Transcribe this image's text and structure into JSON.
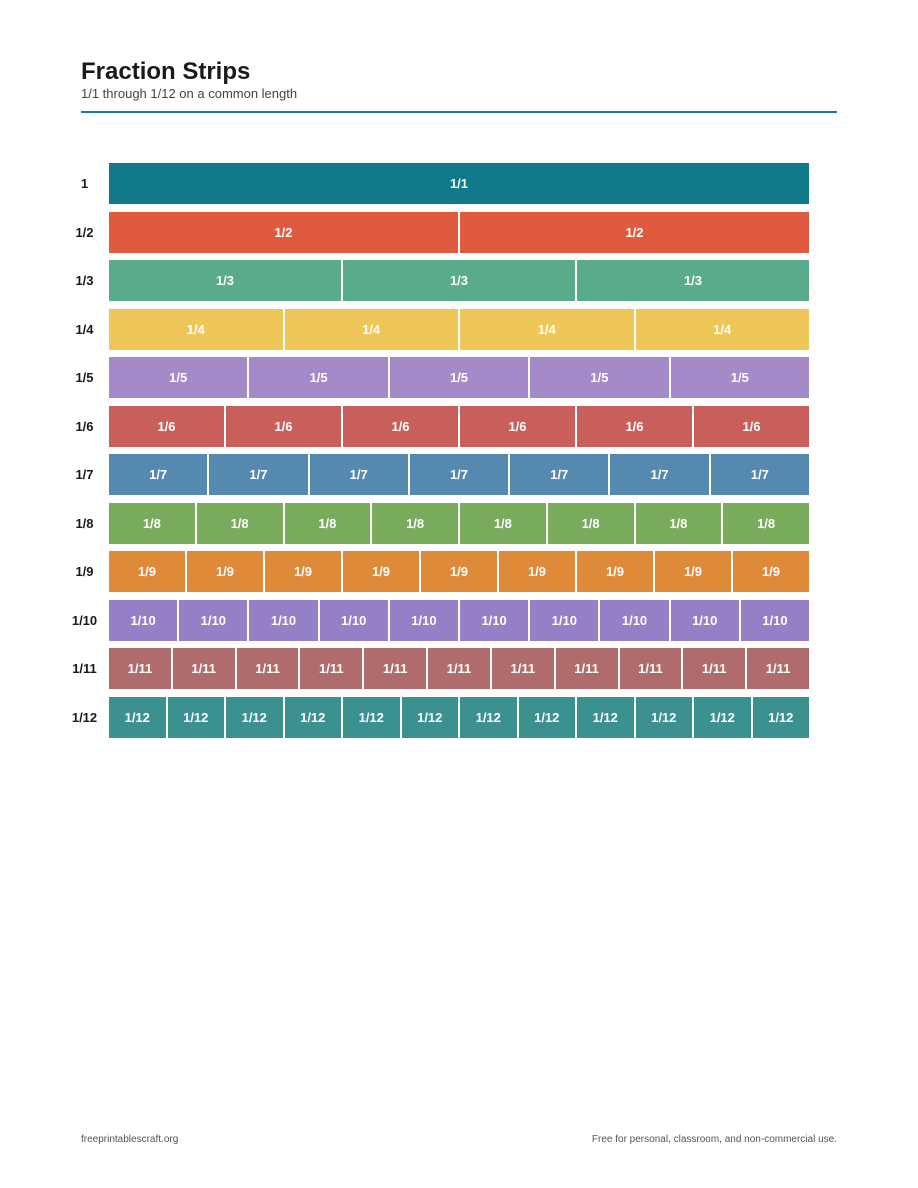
{
  "header": {
    "title": "Fraction Strips",
    "subtitle": "1/1 through 1/12 on a common length"
  },
  "rows": [
    {
      "label": "1",
      "cell": "1/1",
      "count": 1,
      "color": "#107a8b"
    },
    {
      "label": "1/2",
      "cell": "1/2",
      "count": 2,
      "color": "#e05a3f"
    },
    {
      "label": "1/3",
      "cell": "1/3",
      "count": 3,
      "color": "#5aaa8c"
    },
    {
      "label": "1/4",
      "cell": "1/4",
      "count": 4,
      "color": "#efc758"
    },
    {
      "label": "1/5",
      "cell": "1/5",
      "count": 5,
      "color": "#a48ac8"
    },
    {
      "label": "1/6",
      "cell": "1/6",
      "count": 6,
      "color": "#c95f5a"
    },
    {
      "label": "1/7",
      "cell": "1/7",
      "count": 7,
      "color": "#5689af"
    },
    {
      "label": "1/8",
      "cell": "1/8",
      "count": 8,
      "color": "#78ab5c"
    },
    {
      "label": "1/9",
      "cell": "1/9",
      "count": 9,
      "color": "#df8a39"
    },
    {
      "label": "1/10",
      "cell": "1/10",
      "count": 10,
      "color": "#9580c8"
    },
    {
      "label": "1/11",
      "cell": "1/11",
      "count": 11,
      "color": "#b06c6c"
    },
    {
      "label": "1/12",
      "cell": "1/12",
      "count": 12,
      "color": "#3b9090"
    }
  ],
  "footer": {
    "site": "freeprintablescraft.org",
    "license": "Free for personal, classroom, and non-commercial use."
  }
}
